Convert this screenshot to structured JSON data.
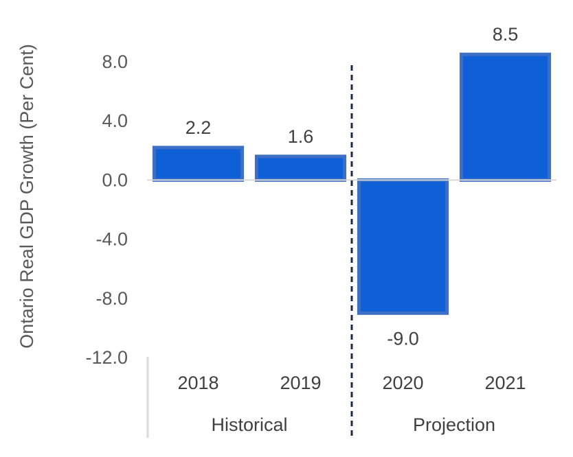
{
  "chart_data": {
    "type": "bar",
    "title": "",
    "xlabel": "",
    "ylabel": "Ontario Real GDP Growth (Per Cent)",
    "categories": [
      "2018",
      "2019",
      "2020",
      "2021"
    ],
    "values": [
      2.2,
      1.6,
      -9.0,
      8.5
    ],
    "data_labels": [
      "2.2",
      "1.6",
      "-9.0",
      "8.5"
    ],
    "yticks": [
      "8.0",
      "4.0",
      "0.0",
      "-4.0",
      "-8.0",
      "-12.0"
    ],
    "ytick_values": [
      8,
      4,
      0,
      -4,
      -8,
      -12
    ],
    "ylim": [
      -12,
      8
    ],
    "groups": [
      {
        "label": "Historical",
        "categories": [
          "2018",
          "2019"
        ]
      },
      {
        "label": "Projection",
        "categories": [
          "2020",
          "2021"
        ]
      }
    ],
    "grid": false,
    "bar_color": "#0f5fd6",
    "bar_edge_color": "#3d6fc4",
    "divider_color": "#1f2a44"
  }
}
